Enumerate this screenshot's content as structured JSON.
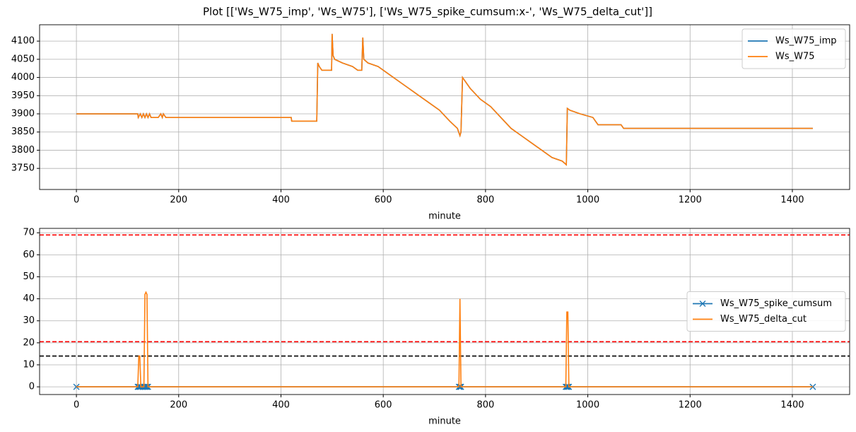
{
  "title": "Plot [['Ws_W75_imp', 'Ws_W75'], ['Ws_W75_spike_cumsum:x-', 'Ws_W75_delta_cut']]",
  "chart_data": [
    {
      "type": "line",
      "xlabel": "minute",
      "x": [
        0,
        120,
        121,
        125,
        128,
        131,
        134,
        137,
        140,
        143,
        146,
        150,
        160,
        165,
        168,
        170,
        175,
        180,
        420,
        421,
        470,
        472,
        475,
        480,
        499,
        500,
        502,
        505,
        520,
        540,
        550,
        558,
        560,
        562,
        570,
        590,
        610,
        630,
        650,
        670,
        690,
        710,
        730,
        745,
        750,
        752,
        755,
        760,
        770,
        790,
        810,
        830,
        850,
        870,
        890,
        910,
        930,
        950,
        958,
        960,
        965,
        985,
        1010,
        1020,
        1065,
        1070,
        1440
      ],
      "series": [
        {
          "name": "Ws_W75_imp",
          "color": "#1f77b4",
          "values": [
            3900,
            3900,
            3890,
            3900,
            3890,
            3900,
            3890,
            3900,
            3890,
            3900,
            3890,
            3890,
            3890,
            3900,
            3890,
            3900,
            3890,
            3890,
            3890,
            3880,
            3880,
            4040,
            4030,
            4020,
            4020,
            4120,
            4060,
            4050,
            4040,
            4030,
            4020,
            4020,
            4110,
            4050,
            4040,
            4030,
            4010,
            3990,
            3970,
            3950,
            3930,
            3910,
            3880,
            3860,
            3840,
            3850,
            4000,
            3990,
            3970,
            3940,
            3920,
            3890,
            3860,
            3840,
            3820,
            3800,
            3780,
            3770,
            3760,
            3915,
            3910,
            3900,
            3890,
            3870,
            3870,
            3860,
            3860
          ]
        },
        {
          "name": "Ws_W75",
          "color": "#ff7f0e",
          "values": [
            3900,
            3900,
            3890,
            3900,
            3890,
            3900,
            3890,
            3900,
            3890,
            3900,
            3890,
            3890,
            3890,
            3900,
            3890,
            3900,
            3890,
            3890,
            3890,
            3880,
            3880,
            4040,
            4030,
            4020,
            4020,
            4120,
            4060,
            4050,
            4040,
            4030,
            4020,
            4020,
            4110,
            4050,
            4040,
            4030,
            4010,
            3990,
            3970,
            3950,
            3930,
            3910,
            3880,
            3860,
            3840,
            3850,
            4000,
            3990,
            3970,
            3940,
            3920,
            3890,
            3860,
            3840,
            3820,
            3800,
            3780,
            3770,
            3760,
            3915,
            3910,
            3900,
            3890,
            3870,
            3870,
            3860,
            3860
          ]
        }
      ],
      "xlim": [
        -72,
        1512
      ],
      "xticks": [
        0,
        200,
        400,
        600,
        800,
        1000,
        1200,
        1400
      ],
      "ylim": [
        3692,
        4145
      ],
      "yticks": [
        3750,
        3800,
        3850,
        3900,
        3950,
        4000,
        4050,
        4100
      ],
      "grid": true,
      "legend": "upper-right"
    },
    {
      "type": "line",
      "xlabel": "minute",
      "x": [
        0,
        120,
        122,
        124,
        126,
        130,
        132,
        134,
        136,
        138,
        140,
        748,
        750,
        752,
        957,
        959,
        961,
        963,
        1440
      ],
      "series": [
        {
          "name": "Ws_W75_spike_cumsum",
          "color": "#1f77b4",
          "marker": "x",
          "values": [
            0,
            0,
            0,
            0,
            0,
            0,
            0,
            0,
            0,
            0,
            0,
            0,
            0,
            0,
            0,
            0,
            0,
            0,
            0
          ]
        },
        {
          "name": "Ws_W75_delta_cut",
          "color": "#ff7f0e",
          "values": [
            0,
            0,
            14,
            14,
            0,
            0,
            0,
            42,
            43,
            42,
            0,
            0,
            40,
            0,
            0,
            34,
            34,
            0,
            0
          ]
        }
      ],
      "hlines": [
        {
          "value": 69,
          "color": "#ff0000"
        },
        {
          "value": 20.5,
          "color": "#ff0000"
        },
        {
          "value": 14,
          "color": "#000000"
        }
      ],
      "xlim": [
        -72,
        1512
      ],
      "xticks": [
        0,
        200,
        400,
        600,
        800,
        1000,
        1200,
        1400
      ],
      "ylim": [
        -3.5,
        72
      ],
      "yticks": [
        0,
        10,
        20,
        30,
        40,
        50,
        60,
        70
      ],
      "grid": true,
      "legend": "center-right"
    }
  ]
}
